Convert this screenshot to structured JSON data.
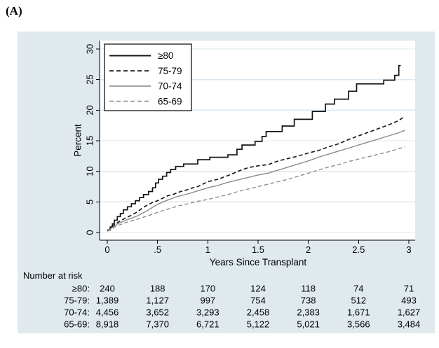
{
  "figure_label": "(A)",
  "colors": {
    "region_bg": "#dfe9ee",
    "plot_bg": "#ffffff",
    "gridline": "#dce8f0",
    "axis": "#000000",
    "black_series": "#141414",
    "gray_series": "#8c8c8c",
    "legend_bg": "#ffffff",
    "legend_border": "#000000"
  },
  "chart_data": {
    "type": "line",
    "title": "",
    "xlabel": "Years Since Transplant",
    "ylabel": "Percent",
    "xlim": [
      0,
      3
    ],
    "ylim": [
      0,
      30
    ],
    "grid": "horizontal",
    "legend_position": "top-left-inside",
    "xticks": [
      {
        "value": 0,
        "label": "0"
      },
      {
        "value": 0.5,
        "label": ".5"
      },
      {
        "value": 1,
        "label": "1"
      },
      {
        "value": 1.5,
        "label": "1.5"
      },
      {
        "value": 2,
        "label": "2"
      },
      {
        "value": 2.5,
        "label": "2.5"
      },
      {
        "value": 3,
        "label": "3"
      }
    ],
    "yticks": [
      {
        "value": 0,
        "label": "0"
      },
      {
        "value": 5,
        "label": "5"
      },
      {
        "value": 10,
        "label": "10"
      },
      {
        "value": 15,
        "label": "15"
      },
      {
        "value": 20,
        "label": "20"
      },
      {
        "value": 25,
        "label": "25"
      },
      {
        "value": 30,
        "label": "30"
      }
    ],
    "series": [
      {
        "name": "≥80",
        "key": "ge80",
        "color": "black_series",
        "dash": "solid",
        "width": 1.7,
        "interpolation": "step-after",
        "points": [
          [
            0,
            0.4
          ],
          [
            0.03,
            0.9
          ],
          [
            0.05,
            1.4
          ],
          [
            0.07,
            2.0
          ],
          [
            0.1,
            2.6
          ],
          [
            0.13,
            3.1
          ],
          [
            0.16,
            3.7
          ],
          [
            0.2,
            4.2
          ],
          [
            0.24,
            4.7
          ],
          [
            0.28,
            5.2
          ],
          [
            0.32,
            5.7
          ],
          [
            0.36,
            6.2
          ],
          [
            0.41,
            6.7
          ],
          [
            0.45,
            7.3
          ],
          [
            0.48,
            8.1
          ],
          [
            0.51,
            8.7
          ],
          [
            0.55,
            9.2
          ],
          [
            0.59,
            9.8
          ],
          [
            0.63,
            10.3
          ],
          [
            0.68,
            10.8
          ],
          [
            0.76,
            11.2
          ],
          [
            0.9,
            11.9
          ],
          [
            1.02,
            12.3
          ],
          [
            1.2,
            12.7
          ],
          [
            1.29,
            13.6
          ],
          [
            1.34,
            14.3
          ],
          [
            1.47,
            14.9
          ],
          [
            1.54,
            15.7
          ],
          [
            1.58,
            16.5
          ],
          [
            1.74,
            17.4
          ],
          [
            1.86,
            18.5
          ],
          [
            2.04,
            19.8
          ],
          [
            2.17,
            21.0
          ],
          [
            2.26,
            21.8
          ],
          [
            2.4,
            23.1
          ],
          [
            2.48,
            24.3
          ],
          [
            2.75,
            24.9
          ],
          [
            2.86,
            25.7
          ],
          [
            2.9,
            27.3
          ],
          [
            2.92,
            27.3
          ]
        ]
      },
      {
        "name": "75-79",
        "key": "75-79",
        "color": "black_series",
        "dash": "dashed",
        "width": 1.6,
        "interpolation": "linear",
        "points": [
          [
            0,
            0.2
          ],
          [
            0.05,
            1.0
          ],
          [
            0.1,
            1.6
          ],
          [
            0.15,
            2.1
          ],
          [
            0.2,
            2.5
          ],
          [
            0.25,
            2.9
          ],
          [
            0.3,
            3.4
          ],
          [
            0.35,
            4.0
          ],
          [
            0.4,
            4.5
          ],
          [
            0.45,
            4.9
          ],
          [
            0.5,
            5.2
          ],
          [
            0.55,
            5.6
          ],
          [
            0.6,
            6.0
          ],
          [
            0.65,
            6.2
          ],
          [
            0.7,
            6.5
          ],
          [
            0.75,
            6.8
          ],
          [
            0.8,
            7.0
          ],
          [
            0.85,
            7.3
          ],
          [
            0.9,
            7.5
          ],
          [
            0.95,
            7.9
          ],
          [
            1.0,
            8.3
          ],
          [
            1.1,
            8.7
          ],
          [
            1.2,
            9.3
          ],
          [
            1.3,
            10.0
          ],
          [
            1.4,
            10.6
          ],
          [
            1.5,
            10.9
          ],
          [
            1.6,
            11.1
          ],
          [
            1.7,
            11.7
          ],
          [
            1.8,
            12.1
          ],
          [
            1.9,
            12.5
          ],
          [
            2.0,
            13.0
          ],
          [
            2.1,
            13.4
          ],
          [
            2.2,
            14.0
          ],
          [
            2.3,
            14.5
          ],
          [
            2.4,
            15.2
          ],
          [
            2.5,
            15.8
          ],
          [
            2.6,
            16.4
          ],
          [
            2.7,
            17.0
          ],
          [
            2.8,
            17.6
          ],
          [
            2.9,
            18.3
          ],
          [
            2.95,
            18.9
          ]
        ]
      },
      {
        "name": "70-74",
        "key": "70-74",
        "color": "gray_series",
        "dash": "solid",
        "width": 1.4,
        "interpolation": "linear",
        "points": [
          [
            0,
            0.2
          ],
          [
            0.1,
            1.4
          ],
          [
            0.2,
            2.1
          ],
          [
            0.3,
            2.7
          ],
          [
            0.4,
            3.6
          ],
          [
            0.5,
            4.6
          ],
          [
            0.6,
            5.3
          ],
          [
            0.7,
            5.9
          ],
          [
            0.8,
            6.3
          ],
          [
            0.9,
            6.8
          ],
          [
            1.0,
            7.3
          ],
          [
            1.1,
            7.7
          ],
          [
            1.2,
            8.2
          ],
          [
            1.3,
            8.6
          ],
          [
            1.4,
            9.0
          ],
          [
            1.5,
            9.4
          ],
          [
            1.6,
            9.7
          ],
          [
            1.7,
            10.2
          ],
          [
            1.8,
            10.7
          ],
          [
            1.9,
            11.2
          ],
          [
            2.0,
            11.7
          ],
          [
            2.1,
            12.3
          ],
          [
            2.2,
            12.8
          ],
          [
            2.3,
            13.3
          ],
          [
            2.4,
            13.8
          ],
          [
            2.5,
            14.3
          ],
          [
            2.6,
            14.8
          ],
          [
            2.7,
            15.3
          ],
          [
            2.8,
            15.8
          ],
          [
            2.9,
            16.3
          ],
          [
            2.96,
            16.7
          ]
        ]
      },
      {
        "name": "65-69",
        "key": "65-69",
        "color": "gray_series",
        "dash": "dashed",
        "width": 1.4,
        "interpolation": "linear",
        "points": [
          [
            0,
            0.2
          ],
          [
            0.1,
            1.1
          ],
          [
            0.2,
            1.7
          ],
          [
            0.3,
            2.2
          ],
          [
            0.4,
            2.7
          ],
          [
            0.5,
            3.3
          ],
          [
            0.6,
            3.8
          ],
          [
            0.7,
            4.3
          ],
          [
            0.8,
            4.7
          ],
          [
            0.9,
            5.1
          ],
          [
            1.0,
            5.4
          ],
          [
            1.1,
            5.8
          ],
          [
            1.2,
            6.2
          ],
          [
            1.3,
            6.7
          ],
          [
            1.4,
            7.1
          ],
          [
            1.5,
            7.5
          ],
          [
            1.6,
            7.9
          ],
          [
            1.7,
            8.3
          ],
          [
            1.8,
            8.7
          ],
          [
            1.9,
            9.2
          ],
          [
            2.0,
            9.7
          ],
          [
            2.1,
            10.2
          ],
          [
            2.2,
            10.7
          ],
          [
            2.3,
            11.1
          ],
          [
            2.4,
            11.6
          ],
          [
            2.5,
            12.0
          ],
          [
            2.6,
            12.4
          ],
          [
            2.7,
            12.8
          ],
          [
            2.8,
            13.2
          ],
          [
            2.9,
            13.7
          ],
          [
            2.96,
            14.0
          ]
        ]
      }
    ]
  },
  "risk_table": {
    "title": "Number at risk",
    "time_columns": [
      0,
      0.5,
      1,
      1.5,
      2,
      2.5,
      3
    ],
    "rows": [
      {
        "label": "≥80:",
        "values": [
          "240",
          "188",
          "170",
          "124",
          "118",
          "74",
          "71"
        ]
      },
      {
        "label": "75-79:",
        "values": [
          "1,389",
          "1,127",
          "997",
          "754",
          "738",
          "512",
          "493"
        ]
      },
      {
        "label": "70-74:",
        "values": [
          "4,456",
          "3,652",
          "3,293",
          "2,458",
          "2,383",
          "1,671",
          "1,627"
        ]
      },
      {
        "label": "65-69:",
        "values": [
          "8,918",
          "7,370",
          "6,721",
          "5,122",
          "5,021",
          "3,566",
          "3,484"
        ]
      }
    ]
  }
}
